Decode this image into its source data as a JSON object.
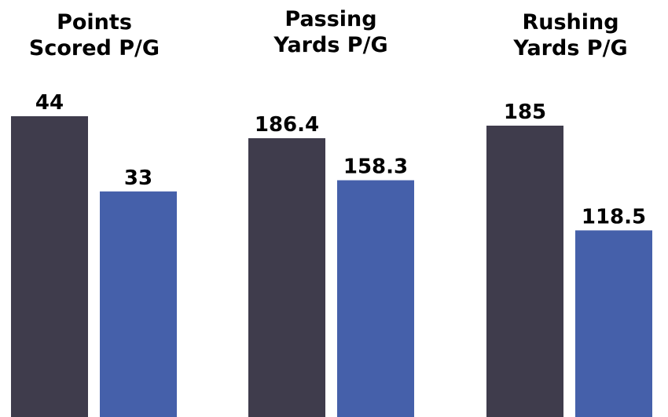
{
  "chart_data": {
    "type": "bar",
    "colors": [
      "#3f3c4c",
      "#4560aa"
    ],
    "panels": [
      {
        "title": "Points\nScored P/G",
        "values": [
          44,
          33
        ],
        "value_labels": [
          "44",
          "33"
        ]
      },
      {
        "title": "Passing\nYards P/G",
        "values": [
          186.4,
          158.3
        ],
        "value_labels": [
          "186.4",
          "158.3"
        ]
      },
      {
        "title": "Rushing\nYards P/G",
        "values": [
          185,
          118.5
        ],
        "value_labels": [
          "185",
          "118.5"
        ]
      }
    ]
  }
}
